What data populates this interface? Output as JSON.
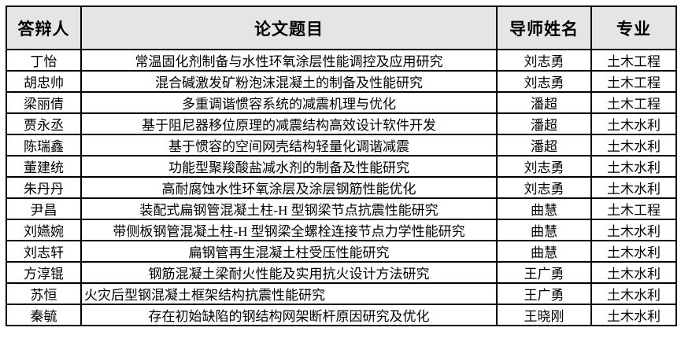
{
  "colors": {
    "header_bg": "#e5e5e5",
    "border": "#000000",
    "text": "#000000",
    "page_bg": "#ffffff"
  },
  "table": {
    "headers": {
      "defender": "答辩人",
      "thesis_title": "论文题目",
      "advisor": "导师姓名",
      "major": "专业"
    },
    "rows": [
      {
        "defender": "丁怡",
        "thesis_title": "常温固化剂制备与水性环氧涂层性能调控及应用研究",
        "advisor": "刘志勇",
        "major": "土木工程",
        "title_align": "center"
      },
      {
        "defender": "胡忠帅",
        "thesis_title": "混合碱激发矿粉泡沫混凝土的制备及性能研究",
        "advisor": "刘志勇",
        "major": "土木工程",
        "title_align": "center"
      },
      {
        "defender": "梁丽倩",
        "thesis_title": "多重调谐惯容系统的减震机理与优化",
        "advisor": "潘超",
        "major": "土木工程",
        "title_align": "center"
      },
      {
        "defender": "贾永丞",
        "thesis_title": "基于阻尼器移位原理的减震结构高效设计软件开发",
        "advisor": "潘超",
        "major": "土木水利",
        "title_align": "center"
      },
      {
        "defender": "陈瑞鑫",
        "thesis_title": "基于惯容的空间网壳结构轻量化调谐减震",
        "advisor": "潘超",
        "major": "土木水利",
        "title_align": "center"
      },
      {
        "defender": "董建统",
        "thesis_title": "功能型聚羧酸盐减水剂的制备及性能研究",
        "advisor": "刘志勇",
        "major": "土木水利",
        "title_align": "center"
      },
      {
        "defender": "朱丹丹",
        "thesis_title": "高耐腐蚀水性环氧涂层及涂层钢筋性能优化",
        "advisor": "刘志勇",
        "major": "土木水利",
        "title_align": "center"
      },
      {
        "defender": "尹昌",
        "thesis_title": "装配式扁钢管混凝土柱-H 型钢梁节点抗震性能研究",
        "advisor": "曲慧",
        "major": "土木工程",
        "title_align": "center"
      },
      {
        "defender": "刘嬿婉",
        "thesis_title": "带侧板钢管混凝土柱-H 型钢梁全螺栓连接节点力学性能研究",
        "advisor": "曲慧",
        "major": "土木水利",
        "title_align": "center"
      },
      {
        "defender": "刘志轩",
        "thesis_title": "扁钢管再生混凝土柱受压性能研究",
        "advisor": "曲慧",
        "major": "土木水利",
        "title_align": "center"
      },
      {
        "defender": "方淳锟",
        "thesis_title": "钢筋混凝土梁耐火性能及实用抗火设计方法研究",
        "advisor": "王广勇",
        "major": "土木水利",
        "title_align": "center"
      },
      {
        "defender": "苏恒",
        "thesis_title": "火灾后型钢混凝土框架结构抗震性能研究",
        "advisor": "王广勇",
        "major": "土木水利",
        "title_align": "left"
      },
      {
        "defender": "秦毓",
        "thesis_title": "存在初始缺陷的钢结构网架断杆原因研究及优化",
        "advisor": "王晓刚",
        "major": "土木水利",
        "title_align": "center"
      }
    ]
  }
}
